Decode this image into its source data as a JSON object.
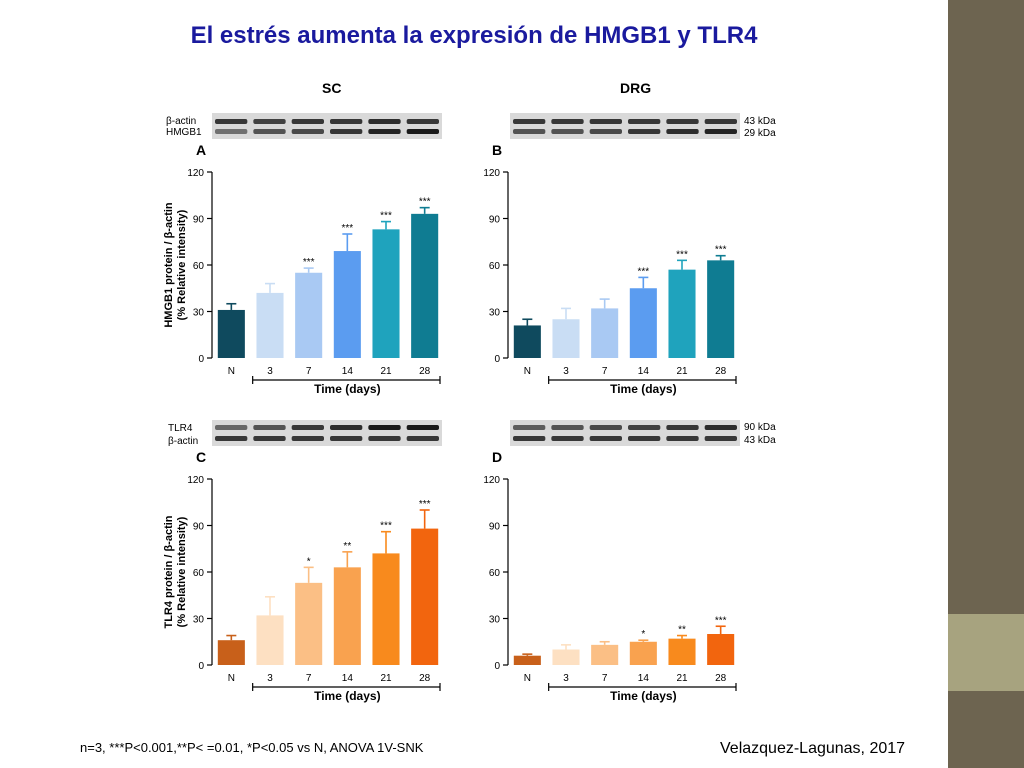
{
  "slide": {
    "title": "El estrés aumenta la expresión de HMGB1 y TLR4",
    "columns": [
      "SC",
      "DRG"
    ],
    "footnote": "n=3, ***P<0.001,**P< =0.01, *P<0.05  vs N, ANOVA 1V-SNK",
    "citation": "Velazquez-Lagunas, 2017"
  },
  "blots": {
    "top_left_labels": [
      "β-actin",
      "HMGB1"
    ],
    "top_right_labels": [
      "43 kDa",
      "29 kDa"
    ],
    "bottom_left_labels": [
      "TLR4",
      "β-actin"
    ],
    "bottom_right_labels": [
      "90 kDa",
      "43 kDa"
    ]
  },
  "colors": {
    "hmgb1": [
      "#0f4a5e",
      "#c9ddf4",
      "#a9c9f3",
      "#5b9cf0",
      "#1fa3bd",
      "#0f7c92"
    ],
    "tlr4": [
      "#c8601a",
      "#fde0c2",
      "#fbbf85",
      "#f9a24f",
      "#f88a1d",
      "#f2650e"
    ]
  },
  "chart_data": [
    {
      "panel": "A",
      "type": "bar",
      "categories": [
        "N",
        "3",
        "7",
        "14",
        "21",
        "28"
      ],
      "values": [
        31,
        42,
        55,
        69,
        83,
        93
      ],
      "errors": [
        4,
        6,
        3,
        11,
        5,
        4
      ],
      "significance": [
        "",
        "",
        "***",
        "***",
        "***",
        "***"
      ],
      "ylabel_line1": "HMGB1 protein / β-actin",
      "ylabel_line2": "(% Relative intensity)",
      "xlabel": "Time (days)",
      "yticks": [
        0,
        30,
        60,
        90,
        120
      ],
      "ylim": [
        0,
        120
      ]
    },
    {
      "panel": "B",
      "type": "bar",
      "categories": [
        "N",
        "3",
        "7",
        "14",
        "21",
        "28"
      ],
      "values": [
        21,
        25,
        32,
        45,
        57,
        63
      ],
      "errors": [
        4,
        7,
        6,
        7,
        6,
        3
      ],
      "significance": [
        "",
        "",
        "",
        "***",
        "***",
        "***"
      ],
      "xlabel": "Time (days)",
      "yticks": [
        0,
        30,
        60,
        90,
        120
      ],
      "ylim": [
        0,
        120
      ]
    },
    {
      "panel": "C",
      "type": "bar",
      "categories": [
        "N",
        "3",
        "7",
        "14",
        "21",
        "28"
      ],
      "values": [
        16,
        32,
        53,
        63,
        72,
        88
      ],
      "errors": [
        3,
        12,
        10,
        10,
        14,
        12
      ],
      "significance": [
        "",
        "",
        "*",
        "**",
        "***",
        "***"
      ],
      "ylabel_line1": "TLR4 protein / β-actin",
      "ylabel_line2": "(% Relative intensity)",
      "xlabel": "Time (days)",
      "yticks": [
        0,
        30,
        60,
        90,
        120
      ],
      "ylim": [
        0,
        120
      ]
    },
    {
      "panel": "D",
      "type": "bar",
      "categories": [
        "N",
        "3",
        "7",
        "14",
        "21",
        "28"
      ],
      "values": [
        6,
        10,
        13,
        15,
        17,
        20
      ],
      "errors": [
        1,
        3,
        2,
        1,
        2,
        5
      ],
      "significance": [
        "",
        "",
        "",
        "*",
        "**",
        "***"
      ],
      "xlabel": "Time (days)",
      "yticks": [
        0,
        30,
        60,
        90,
        120
      ],
      "ylim": [
        0,
        120
      ]
    }
  ]
}
